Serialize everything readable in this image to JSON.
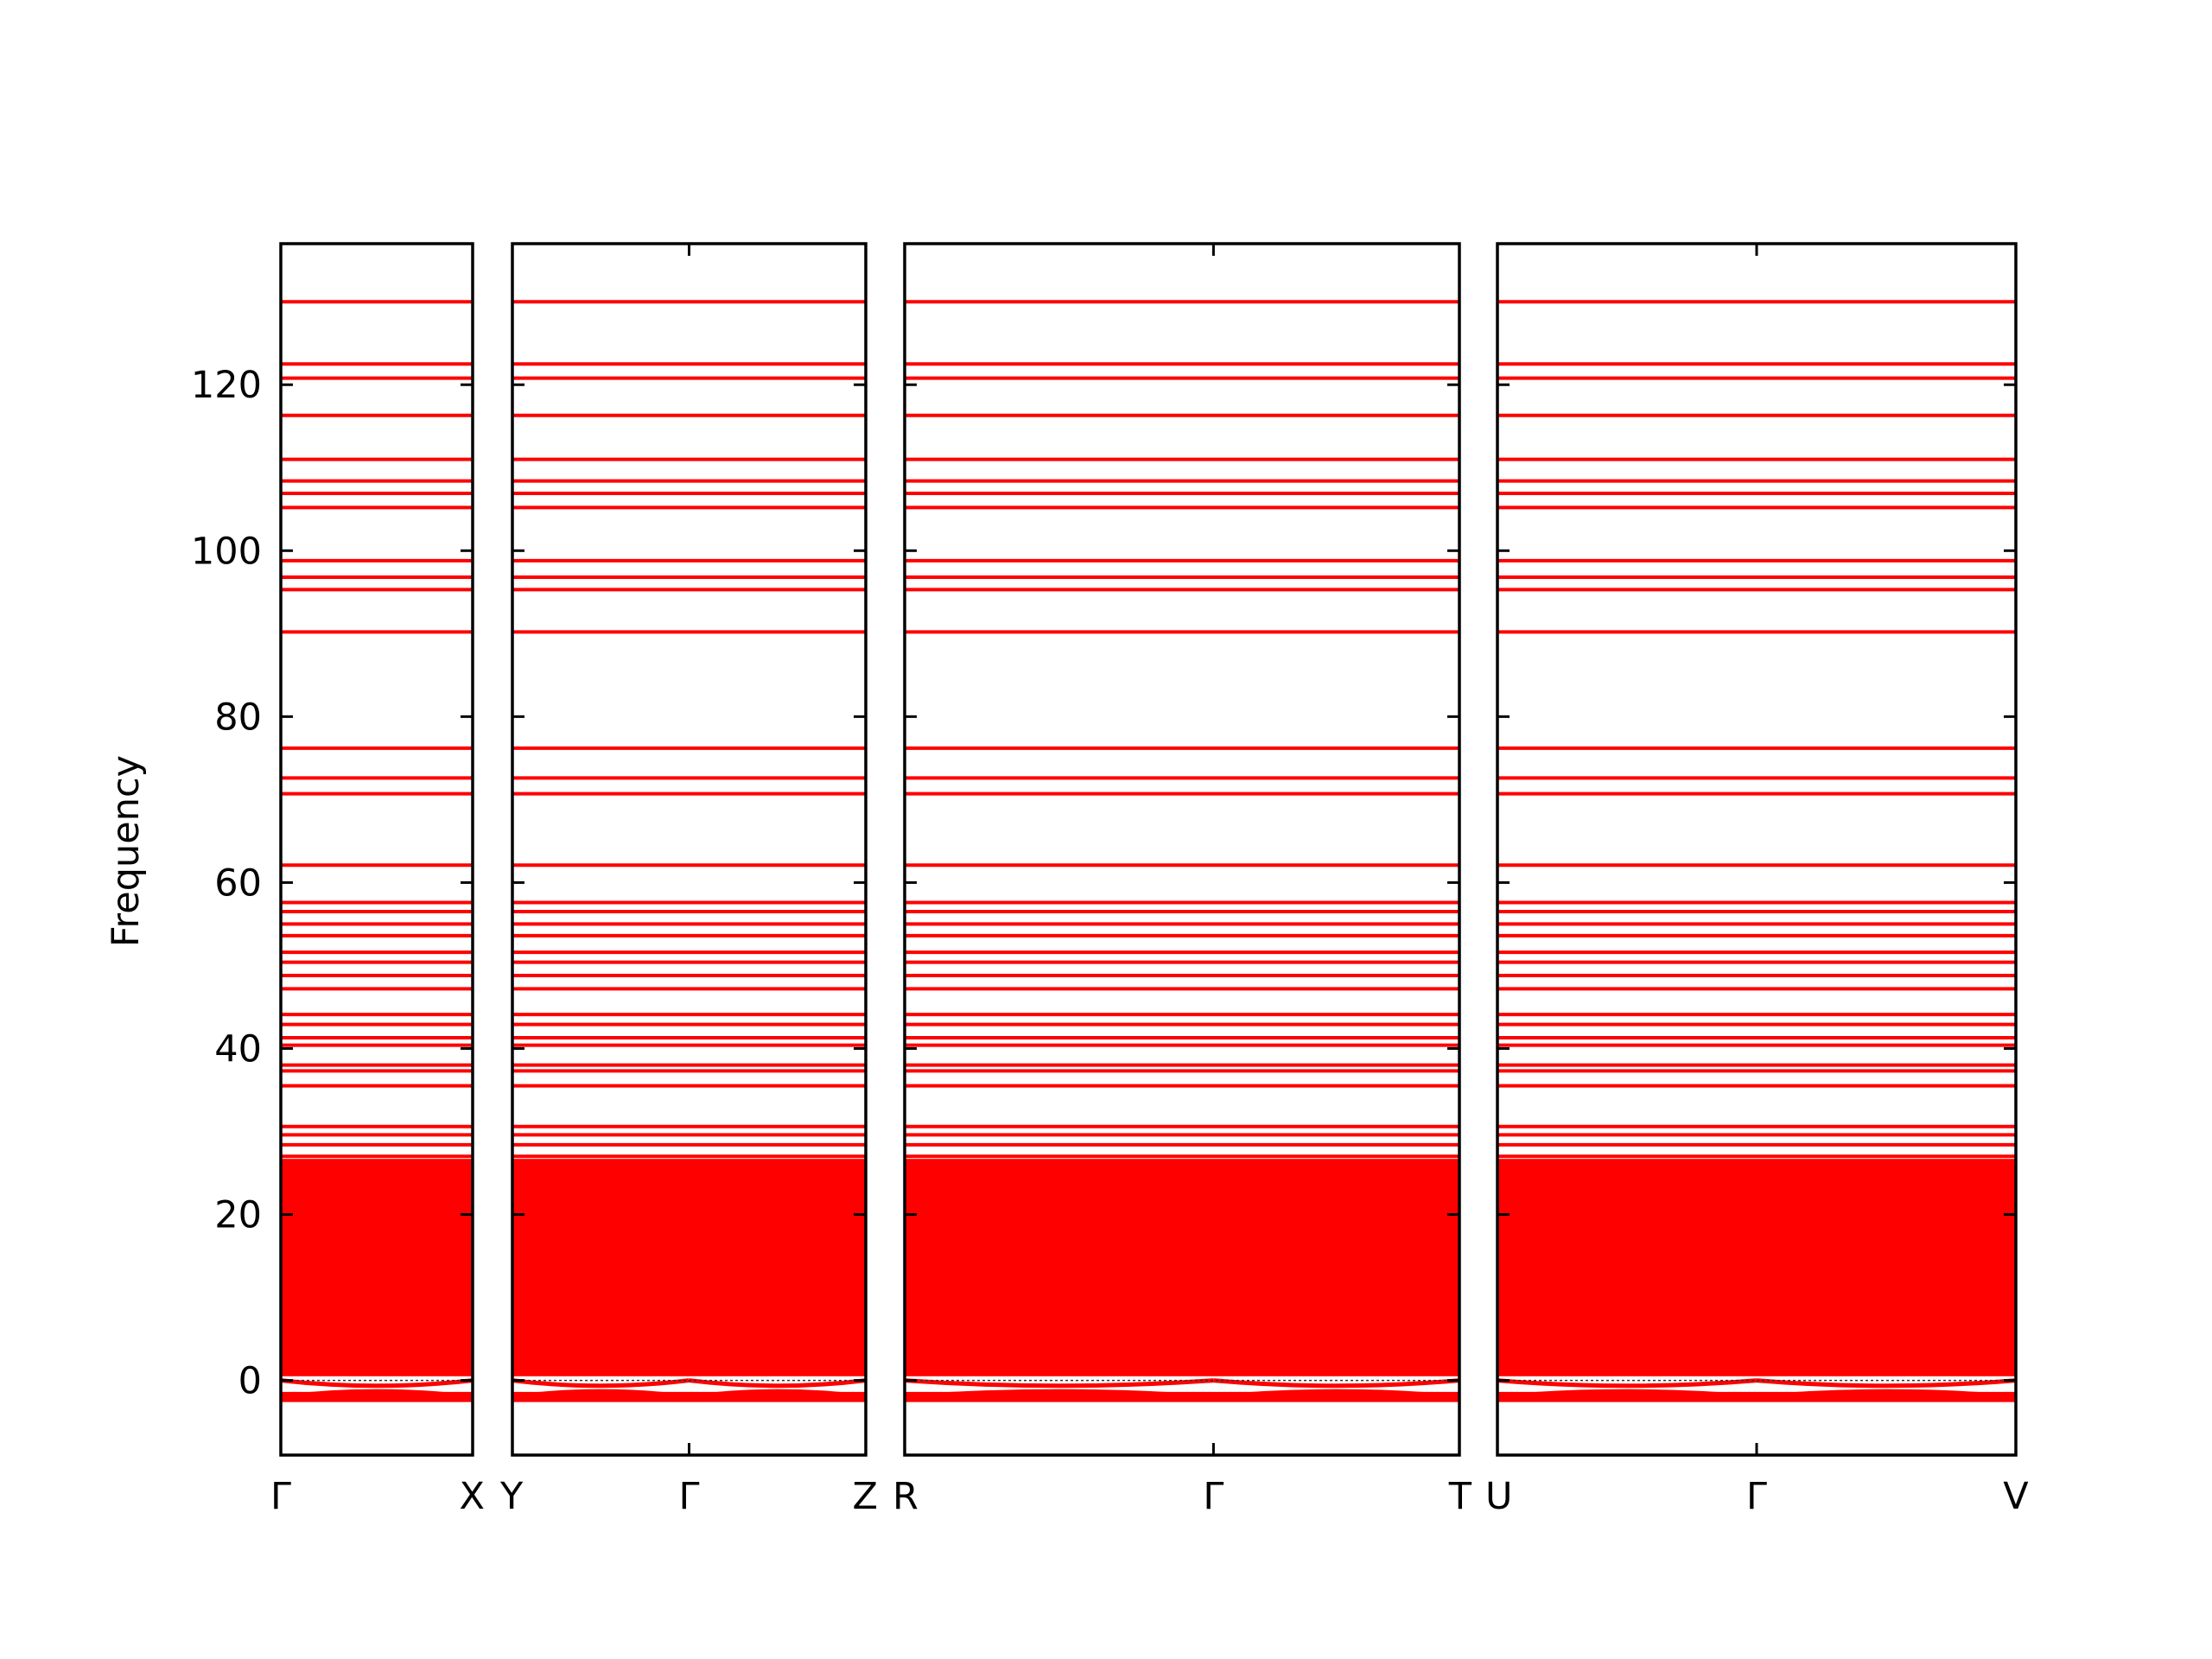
{
  "chart_data": {
    "type": "line",
    "ylabel": "Frequency",
    "xlabel": "",
    "ylim": [
      -9,
      137
    ],
    "yticks": [
      0,
      20,
      40,
      60,
      80,
      100,
      120
    ],
    "grid": false,
    "line_color": "#ff0000",
    "panels": [
      {
        "ticks": [
          "Γ",
          "X"
        ],
        "tick_fractions": [
          0,
          1
        ]
      },
      {
        "ticks": [
          "Y",
          "Γ",
          "Z"
        ],
        "tick_fractions": [
          0,
          0.5,
          1
        ]
      },
      {
        "ticks": [
          "R",
          "Γ",
          "T"
        ],
        "tick_fractions": [
          0,
          0.5567,
          1
        ]
      },
      {
        "ticks": [
          "U",
          "Γ",
          "V"
        ],
        "tick_fractions": [
          0,
          0.5,
          1
        ]
      }
    ],
    "flat_bands": [
      130.0,
      122.5,
      120.8,
      116.3,
      111.0,
      108.4,
      106.9,
      105.2,
      98.8,
      96.8,
      95.3,
      90.2,
      76.2,
      72.6,
      70.7,
      62.1,
      57.6,
      56.5,
      55.0,
      53.6,
      51.6,
      50.4,
      48.8,
      47.2,
      44.1,
      42.9,
      41.3,
      40.4,
      38.0,
      37.3,
      35.5,
      30.6,
      29.6,
      28.4,
      27.0
    ],
    "dense_band_range": [
      0.5,
      26.7
    ],
    "low_bands": {
      "positive_edge": 0.5,
      "negative_lines": [
        -1.7,
        -2.0,
        -2.3
      ]
    }
  }
}
